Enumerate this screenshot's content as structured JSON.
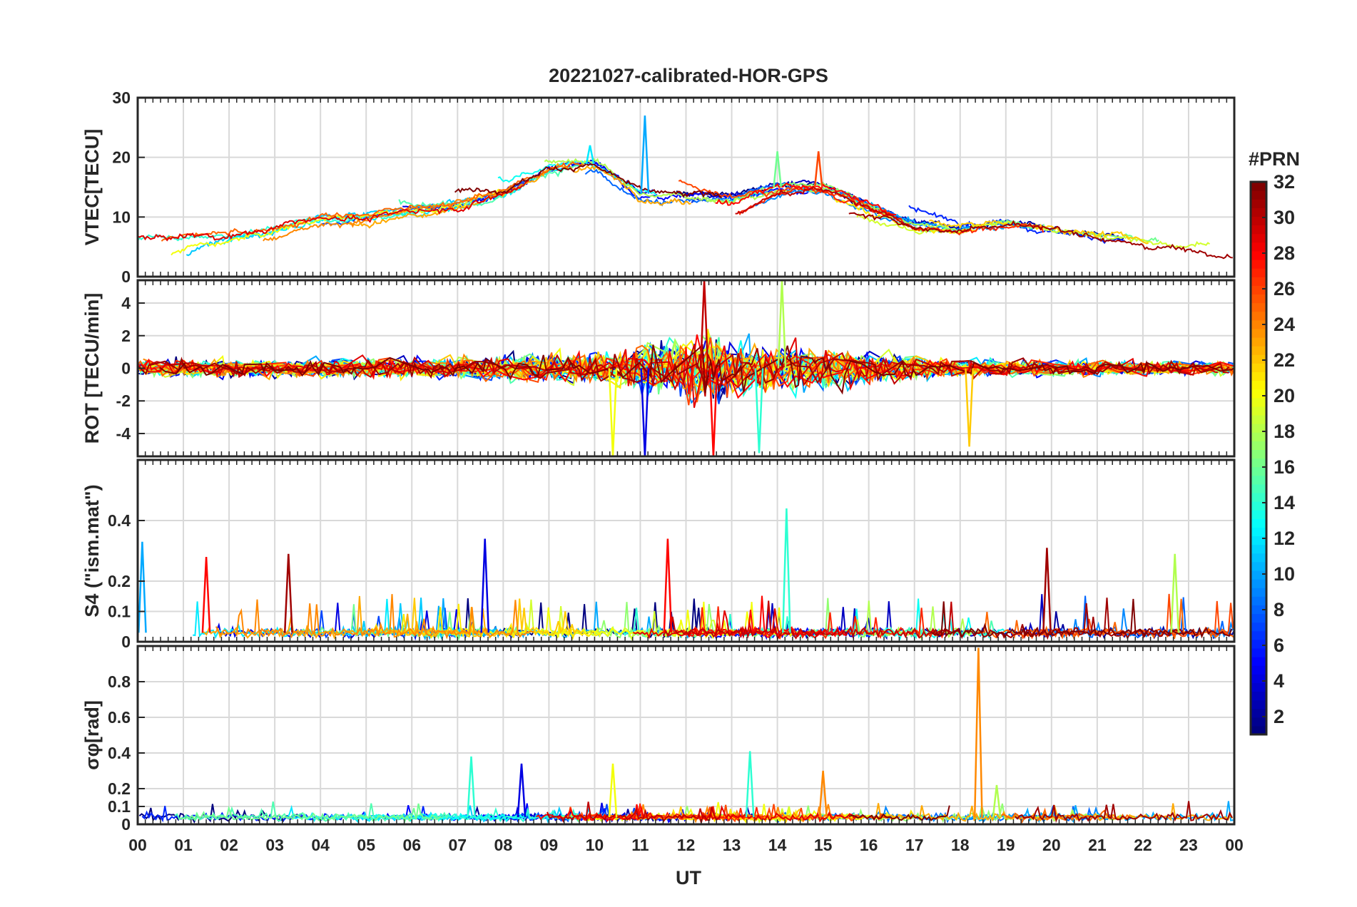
{
  "figure": {
    "title": "20221027-calibrated-HOR-GPS",
    "xlabel": "UT"
  },
  "x_ticks": [
    "00",
    "01",
    "02",
    "03",
    "04",
    "05",
    "06",
    "07",
    "08",
    "09",
    "10",
    "11",
    "12",
    "13",
    "14",
    "15",
    "16",
    "17",
    "18",
    "19",
    "20",
    "21",
    "22",
    "23",
    "00"
  ],
  "colorbar": {
    "title": "#PRN",
    "range": [
      1,
      32
    ],
    "ticks": [
      "2",
      "4",
      "6",
      "8",
      "10",
      "12",
      "14",
      "16",
      "18",
      "20",
      "22",
      "24",
      "26",
      "28",
      "30",
      "32"
    ],
    "colormap": "jet"
  },
  "chart_data": [
    {
      "type": "line",
      "name": "vtec",
      "ylabel": "VTEC[TECU]",
      "ylim": [
        0,
        30
      ],
      "yticks": [
        "0",
        "10",
        "20",
        "30"
      ],
      "x_unit": "hours UT",
      "xlim": [
        0,
        24
      ],
      "grid": true,
      "color_by": "PRN",
      "series_envelope": [
        {
          "t": 0,
          "v": 6
        },
        {
          "t": 2,
          "v": 7
        },
        {
          "t": 3,
          "v": 8
        },
        {
          "t": 4,
          "v": 10
        },
        {
          "t": 5,
          "v": 10
        },
        {
          "t": 6,
          "v": 11
        },
        {
          "t": 7,
          "v": 12
        },
        {
          "t": 8,
          "v": 14
        },
        {
          "t": 9,
          "v": 18
        },
        {
          "t": 10,
          "v": 19
        },
        {
          "t": 11,
          "v": 14
        },
        {
          "t": 12,
          "v": 13
        },
        {
          "t": 13,
          "v": 13
        },
        {
          "t": 14,
          "v": 15
        },
        {
          "t": 15,
          "v": 15
        },
        {
          "t": 16,
          "v": 12
        },
        {
          "t": 17,
          "v": 9
        },
        {
          "t": 18,
          "v": 8
        },
        {
          "t": 19,
          "v": 9
        },
        {
          "t": 20,
          "v": 8
        },
        {
          "t": 21,
          "v": 7
        },
        {
          "t": 22,
          "v": 6
        },
        {
          "t": 23,
          "v": 5
        },
        {
          "t": 24,
          "v": 5
        }
      ],
      "peaks": [
        {
          "t": 9.9,
          "v": 22,
          "prn": 12
        },
        {
          "t": 11.1,
          "v": 27,
          "prn": 10
        },
        {
          "t": 14.0,
          "v": 21,
          "prn": 16
        },
        {
          "t": 14.9,
          "v": 21,
          "prn": 26
        }
      ]
    },
    {
      "type": "line",
      "name": "rot",
      "ylabel": "ROT [TECU/min]",
      "ylim": [
        -5.4,
        5.4
      ],
      "yticks": [
        "-4",
        "-2",
        "0",
        "2",
        "4"
      ],
      "x_unit": "hours UT",
      "xlim": [
        0,
        24
      ],
      "grid": true,
      "color_by": "PRN",
      "amplitude_envelope": [
        {
          "t": 0,
          "a": 0.8
        },
        {
          "t": 4,
          "a": 0.8
        },
        {
          "t": 7,
          "a": 1.0
        },
        {
          "t": 10,
          "a": 1.5
        },
        {
          "t": 11.5,
          "a": 2.5
        },
        {
          "t": 12.5,
          "a": 3.5
        },
        {
          "t": 13.5,
          "a": 2.2
        },
        {
          "t": 15,
          "a": 2.0
        },
        {
          "t": 16.5,
          "a": 1.2
        },
        {
          "t": 18,
          "a": 0.8
        },
        {
          "t": 24,
          "a": 0.6
        }
      ],
      "spikes": [
        {
          "t": 12.4,
          "v": 5.4,
          "prn": 30
        },
        {
          "t": 12.6,
          "v": -5.4,
          "prn": 28
        },
        {
          "t": 11.1,
          "v": -5.4,
          "prn": 4
        },
        {
          "t": 10.4,
          "v": -5.4,
          "prn": 20
        },
        {
          "t": 14.1,
          "v": 5.4,
          "prn": 18
        },
        {
          "t": 18.2,
          "v": -4.8,
          "prn": 22
        },
        {
          "t": 13.6,
          "v": -5.2,
          "prn": 14
        }
      ]
    },
    {
      "type": "line",
      "name": "s4",
      "ylabel": "S4 (\"ism.mat\")",
      "ylim": [
        0,
        0.6
      ],
      "yticks": [
        "0",
        "0.1",
        "0.2",
        "0.4"
      ],
      "x_unit": "hours UT",
      "xlim": [
        0,
        24
      ],
      "grid": true,
      "color_by": "PRN",
      "baseline": 0.03,
      "peaks": [
        {
          "t": 0.1,
          "v": 0.33,
          "prn": 10
        },
        {
          "t": 1.5,
          "v": 0.28,
          "prn": 28
        },
        {
          "t": 3.3,
          "v": 0.29,
          "prn": 31
        },
        {
          "t": 7.6,
          "v": 0.34,
          "prn": 4
        },
        {
          "t": 11.6,
          "v": 0.34,
          "prn": 28
        },
        {
          "t": 14.2,
          "v": 0.44,
          "prn": 14
        },
        {
          "t": 19.9,
          "v": 0.31,
          "prn": 31
        },
        {
          "t": 22.7,
          "v": 0.29,
          "prn": 18
        }
      ]
    },
    {
      "type": "line",
      "name": "sigma_phi",
      "ylabel": "σφ[rad]",
      "ylim": [
        0,
        1.0
      ],
      "yticks": [
        "0",
        "0.1",
        "0.2",
        "0.4",
        "0.6",
        "0.8"
      ],
      "x_unit": "hours UT",
      "xlim": [
        0,
        24
      ],
      "grid": true,
      "color_by": "PRN",
      "baseline": 0.04,
      "peaks": [
        {
          "t": 7.3,
          "v": 0.38,
          "prn": 14
        },
        {
          "t": 8.4,
          "v": 0.34,
          "prn": 4
        },
        {
          "t": 10.4,
          "v": 0.34,
          "prn": 20
        },
        {
          "t": 13.4,
          "v": 0.41,
          "prn": 14
        },
        {
          "t": 15.0,
          "v": 0.3,
          "prn": 24
        },
        {
          "t": 18.4,
          "v": 0.99,
          "prn": 24
        },
        {
          "t": 18.8,
          "v": 0.22,
          "prn": 18
        }
      ]
    }
  ]
}
